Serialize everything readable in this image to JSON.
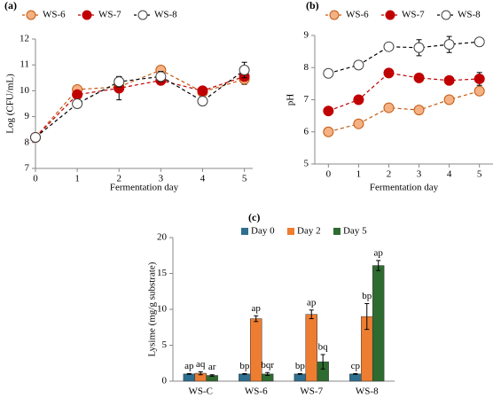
{
  "chart_data": [
    {
      "type": "line",
      "title": "(a)",
      "x_label": "Fermentation day",
      "y_label": "Log (CFU/mL)",
      "x": [
        0,
        1,
        2,
        3,
        4,
        5
      ],
      "xlim": [
        0,
        5.2
      ],
      "xticks": [
        0,
        1,
        2,
        3,
        4,
        5
      ],
      "ylim": [
        7,
        12
      ],
      "yticks": [
        7,
        8,
        9,
        10,
        11,
        12
      ],
      "series": [
        {
          "name": "WS-6",
          "color": "#f4b183",
          "line_color": "#c55a11",
          "values": [
            8.2,
            10.05,
            10.15,
            10.8,
            9.95,
            10.45
          ],
          "errors": [
            0.05,
            0.1,
            0.15,
            0.15,
            0.1,
            0.2
          ]
        },
        {
          "name": "WS-7",
          "color": "#c00000",
          "line_color": "#c00000",
          "values": [
            8.2,
            9.85,
            10.1,
            10.4,
            10.0,
            10.55
          ],
          "errors": [
            0.05,
            0.15,
            0.45,
            0.15,
            0.1,
            0.15
          ]
        },
        {
          "name": "WS-8",
          "color": "#ffffff",
          "line_color": "#000000",
          "values": [
            8.2,
            9.5,
            10.35,
            10.55,
            9.6,
            10.8
          ],
          "errors": [
            0.05,
            0.1,
            0.2,
            0.2,
            0.1,
            0.3
          ]
        }
      ]
    },
    {
      "type": "line",
      "title": "(b)",
      "x_label": "Fermentation day",
      "y_label": "pH",
      "x": [
        0,
        1,
        2,
        3,
        4,
        5
      ],
      "xlim": [
        -0.45,
        5.45
      ],
      "xticks": [
        0,
        1,
        2,
        3,
        4,
        5
      ],
      "ylim": [
        5,
        9
      ],
      "yticks": [
        5,
        6,
        7,
        8,
        9
      ],
      "series": [
        {
          "name": "WS-6",
          "color": "#f4b183",
          "line_color": "#c55a11",
          "values": [
            6.0,
            6.25,
            6.75,
            6.68,
            7.0,
            7.27
          ],
          "errors": [
            0.03,
            0.05,
            0.05,
            0.08,
            0.05,
            0.1
          ]
        },
        {
          "name": "WS-7",
          "color": "#c00000",
          "line_color": "#c00000",
          "values": [
            6.65,
            7.0,
            7.83,
            7.68,
            7.6,
            7.65
          ],
          "errors": [
            0.03,
            0.05,
            0.1,
            0.05,
            0.05,
            0.2
          ]
        },
        {
          "name": "WS-8",
          "color": "#ffffff",
          "line_color": "#000000",
          "values": [
            7.82,
            8.08,
            8.65,
            8.62,
            8.72,
            8.8
          ],
          "errors": [
            0.03,
            0.05,
            0.05,
            0.25,
            0.25,
            0.08
          ]
        }
      ]
    },
    {
      "type": "bar",
      "title": "(c)",
      "y_label": "Lysime (mg/g substrate)",
      "categories": [
        "WS-C",
        "WS-6",
        "WS-7",
        "WS-8"
      ],
      "ylim": [
        0,
        20
      ],
      "yticks": [
        0,
        5,
        10,
        15,
        20
      ],
      "series": [
        {
          "name": "Day 0",
          "color": "#2e6e8e",
          "values": [
            1.0,
            1.0,
            1.0,
            1.0
          ],
          "errors": [
            0.05,
            0.05,
            0.05,
            0.05
          ],
          "labels": [
            "ap",
            "bp",
            "bp",
            "cp"
          ]
        },
        {
          "name": "Day 2",
          "color": "#ed7d31",
          "values": [
            1.1,
            8.7,
            9.3,
            9.0
          ],
          "errors": [
            0.2,
            0.4,
            0.6,
            1.8
          ],
          "labels": [
            "aq",
            "ap",
            "ap",
            "bp"
          ]
        },
        {
          "name": "Day 5",
          "color": "#2e6b30",
          "values": [
            0.8,
            1.0,
            2.7,
            16.1
          ],
          "errors": [
            0.1,
            0.2,
            1.0,
            0.7
          ],
          "labels": [
            "ar",
            "bqr",
            "bq",
            "ap"
          ]
        }
      ]
    }
  ]
}
